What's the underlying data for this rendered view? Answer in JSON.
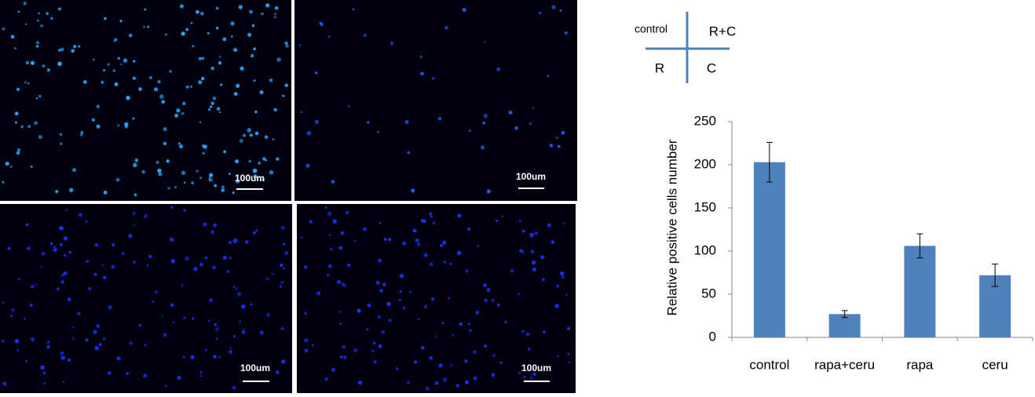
{
  "scale_bar": "100um",
  "key": {
    "top_left": "control",
    "top_right": "R+C",
    "bottom_left": "R",
    "bottom_right": "C"
  },
  "chart_data": {
    "type": "bar",
    "y_label": "Relative positive cells number",
    "categories": [
      "control",
      "rapa+ceru",
      "rapa",
      "ceru"
    ],
    "values": [
      203,
      27,
      106,
      72
    ],
    "errors": [
      23,
      4,
      14,
      13
    ],
    "color": "#4f81bd",
    "ylim": [
      0,
      250
    ],
    "yticks": [
      0,
      50,
      100,
      150,
      200,
      250
    ]
  }
}
